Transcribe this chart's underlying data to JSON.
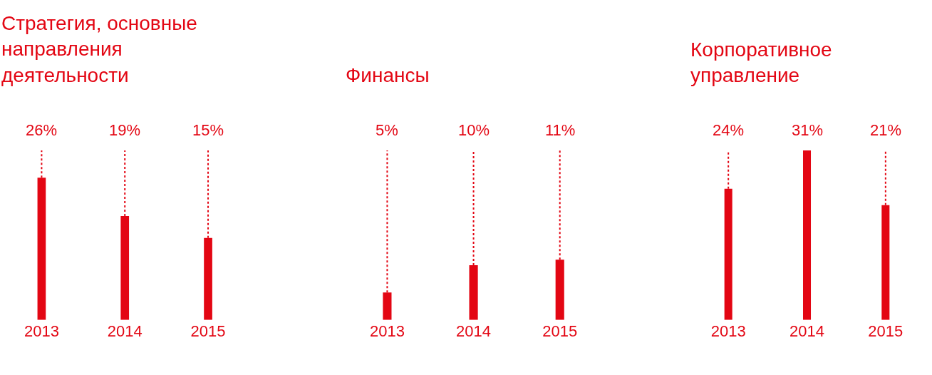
{
  "chart_data": [
    {
      "type": "bar",
      "title": "Стратегия, основные направления деятельности",
      "categories": [
        "2013",
        "2014",
        "2015"
      ],
      "values": [
        26,
        19,
        15
      ],
      "color": "#e30613",
      "data_labels": true,
      "value_labels": [
        "26%",
        "19%",
        "15%"
      ]
    },
    {
      "type": "bar",
      "title": "Финансы",
      "categories": [
        "2013",
        "2014",
        "2015"
      ],
      "values": [
        5,
        10,
        11
      ],
      "color": "#e30613",
      "data_labels": true,
      "value_labels": [
        "5%",
        "10%",
        "11%"
      ]
    },
    {
      "type": "bar",
      "title": "Корпоративное управление",
      "categories": [
        "2013",
        "2014",
        "2015"
      ],
      "values": [
        24,
        31,
        21
      ],
      "color": "#e30613",
      "data_labels": true,
      "value_labels": [
        "24%",
        "31%",
        "21%"
      ]
    }
  ]
}
